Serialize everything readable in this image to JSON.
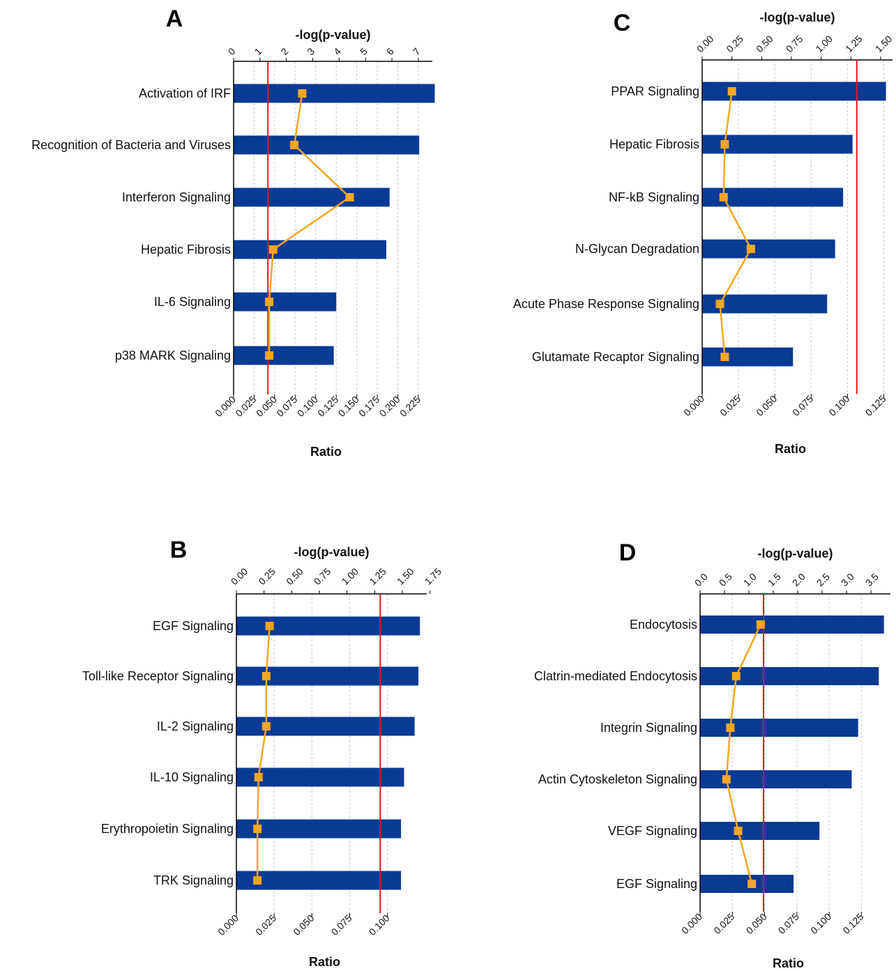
{
  "colors": {
    "bar": "#0b3a94",
    "line": "#f5a623",
    "marker": "#f5a623",
    "threshold": "#e8161b",
    "grid": "#c8c8c8",
    "axis": "#000000"
  },
  "chart_data": [
    {
      "type": "bar",
      "panel": "A",
      "orientation": "horizontal",
      "categories": [
        "Activation of IRF",
        "Recognition of Bacteria and Viruses",
        "Interferon Signaling",
        "Hepatic Fibrosis",
        "IL-6 Signaling",
        "p38 MARK Signaling"
      ],
      "series": [
        {
          "kind": "bar",
          "values": [
            0.245,
            0.226,
            0.19,
            0.186,
            0.125,
            0.122
          ]
        },
        {
          "kind": "line",
          "values": [
            2.6,
            2.3,
            4.4,
            1.5,
            1.35,
            1.35
          ]
        }
      ],
      "threshold": 1.3,
      "top_axis": {
        "label": "-log(p-value)",
        "ticks": [
          "0",
          "1",
          "2",
          "3",
          "4",
          "5",
          "6",
          "7"
        ],
        "range": [
          0,
          7.53
        ]
      },
      "bottom_axis": {
        "label": "Ratio",
        "ticks": [
          "0.000",
          "0.025",
          "0.050",
          "0.075",
          "0.100",
          "0.125",
          "0.150",
          "0.175",
          "0.200",
          "0.225"
        ],
        "range": [
          0,
          0.242
        ]
      }
    },
    {
      "type": "bar",
      "panel": "B",
      "orientation": "horizontal",
      "categories": [
        "EGF Signaling",
        "Toll-like Receptor Signaling",
        "IL-2 Signaling",
        "IL-10 Signaling",
        "Erythropoietin Signaling",
        "TRK Signaling"
      ],
      "series": [
        {
          "kind": "bar",
          "values": [
            0.1215,
            0.1205,
            0.118,
            0.111,
            0.109,
            0.109
          ]
        },
        {
          "kind": "line",
          "values": [
            0.3,
            0.27,
            0.27,
            0.2,
            0.19,
            0.19
          ]
        }
      ],
      "threshold": 1.3,
      "top_axis": {
        "label": "-log(p-value)",
        "ticks": [
          "0.00",
          "0.25",
          "0.50",
          "0.75",
          "1.00",
          "1.25",
          "1.50",
          "1.75"
        ],
        "range": [
          0,
          1.72
        ]
      },
      "bottom_axis": {
        "label": "Ratio",
        "ticks": [
          "0.000",
          "0.025",
          "0.050",
          "0.075",
          "0.100"
        ],
        "range": [
          0,
          0.126
        ]
      }
    },
    {
      "type": "bar",
      "panel": "C",
      "orientation": "horizontal",
      "categories": [
        "PPAR Signaling",
        "Hepatic Fibrosis",
        "NF-kB Signaling",
        "N-Glycan Degradation",
        "Acute Phase Response Signaling",
        "Glutamate Recaptor Signaling"
      ],
      "series": [
        {
          "kind": "bar",
          "values": [
            0.1265,
            0.1035,
            0.097,
            0.0915,
            0.086,
            0.0625
          ]
        },
        {
          "kind": "line",
          "values": [
            0.25,
            0.19,
            0.18,
            0.41,
            0.15,
            0.19
          ]
        }
      ],
      "threshold": 1.3,
      "top_axis": {
        "label": "-log(p-value)",
        "ticks": [
          "0.00",
          "0.25",
          "0.50",
          "0.75",
          "1.00",
          "1.25",
          "1.50"
        ],
        "range": [
          0,
          1.6
        ]
      },
      "bottom_axis": {
        "label": "Ratio",
        "ticks": [
          "0.000",
          "0.025",
          "0.050",
          "0.075",
          "0.100",
          "0.125"
        ],
        "range": [
          0,
          0.131
        ]
      }
    },
    {
      "type": "bar",
      "panel": "D",
      "orientation": "horizontal",
      "categories": [
        "Endocytosis",
        "Clatrin-mediated Endocytosis",
        "Integrin Signaling",
        "Actin Cytoskeleton Signaling",
        "VEGF Signaling",
        "EGF Signaling"
      ],
      "series": [
        {
          "kind": "bar",
          "values": [
            0.1425,
            0.1385,
            0.1225,
            0.1175,
            0.0925,
            0.0725
          ]
        },
        {
          "kind": "line",
          "values": [
            1.24,
            0.74,
            0.62,
            0.54,
            0.78,
            1.06
          ]
        }
      ],
      "threshold": 1.3,
      "top_axis": {
        "label": "-log(p-value)",
        "ticks": [
          "0.0",
          "0.5",
          "1.0",
          "1.5",
          "2.0",
          "2.5",
          "3.0",
          "3.5"
        ],
        "range": [
          0,
          3.9
        ]
      },
      "bottom_axis": {
        "label": "Ratio",
        "ticks": [
          "0.000",
          "0.025",
          "0.050",
          "0.075",
          "0.100",
          "0.125"
        ],
        "range": [
          0,
          0.1475
        ]
      }
    }
  ]
}
